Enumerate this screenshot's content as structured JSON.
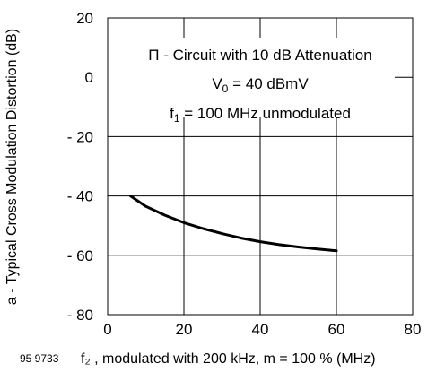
{
  "figure_id": "95 9733",
  "chart_data": {
    "type": "line",
    "title": "",
    "xlabel": "f₂ , modulated with 200 kHz, m = 100 % (MHz)",
    "ylabel": "a - Typical Cross Modulation Distortion (dB)",
    "xlim": [
      0,
      80
    ],
    "ylim": [
      -80,
      20
    ],
    "x_ticks": [
      0,
      20,
      40,
      60,
      80
    ],
    "y_ticks": [
      20,
      0,
      -20,
      -40,
      -60,
      -80
    ],
    "x_tick_labels": [
      "0",
      "20",
      "40",
      "60",
      "80"
    ],
    "y_tick_labels": [
      "20",
      "0",
      "- 20",
      "- 40",
      "- 60",
      "- 80"
    ],
    "grid": true,
    "annotations": {
      "line1": "Π - Circuit with 10 dB Attenuation",
      "line2_main": "V",
      "line2_sub": "0",
      "line2_rest": " = 40 dBmV",
      "line3_main": "f",
      "line3_sub": "1",
      "line3_rest": " = 100 MHz unmodulated"
    },
    "series": [
      {
        "x": [
          6,
          10,
          15,
          20,
          25,
          30,
          35,
          40,
          45,
          50,
          55,
          60
        ],
        "y": [
          -40,
          -43.5,
          -46.5,
          -49,
          -51,
          -52.7,
          -54.2,
          -55.4,
          -56.4,
          -57.2,
          -57.9,
          -58.5
        ]
      }
    ]
  }
}
